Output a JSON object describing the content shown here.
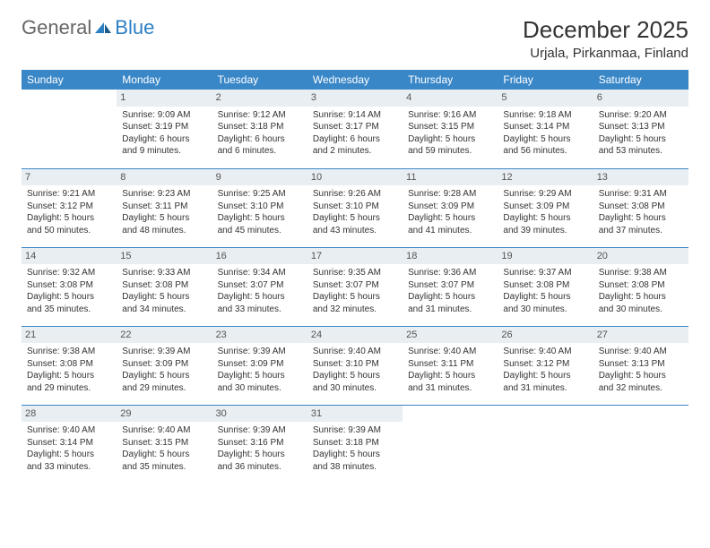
{
  "logo": {
    "text1": "General",
    "text2": "Blue"
  },
  "title": "December 2025",
  "location": "Urjala, Pirkanmaa, Finland",
  "colors": {
    "header_bg": "#3a87c8",
    "header_text": "#ffffff",
    "daynum_bg": "#e8eef2",
    "row_border": "#3a87c8",
    "logo_gray": "#666666",
    "logo_blue": "#2b7fc3"
  },
  "weekdays": [
    "Sunday",
    "Monday",
    "Tuesday",
    "Wednesday",
    "Thursday",
    "Friday",
    "Saturday"
  ],
  "weeks": [
    [
      null,
      {
        "d": "1",
        "sr": "Sunrise: 9:09 AM",
        "ss": "Sunset: 3:19 PM",
        "dl1": "Daylight: 6 hours",
        "dl2": "and 9 minutes."
      },
      {
        "d": "2",
        "sr": "Sunrise: 9:12 AM",
        "ss": "Sunset: 3:18 PM",
        "dl1": "Daylight: 6 hours",
        "dl2": "and 6 minutes."
      },
      {
        "d": "3",
        "sr": "Sunrise: 9:14 AM",
        "ss": "Sunset: 3:17 PM",
        "dl1": "Daylight: 6 hours",
        "dl2": "and 2 minutes."
      },
      {
        "d": "4",
        "sr": "Sunrise: 9:16 AM",
        "ss": "Sunset: 3:15 PM",
        "dl1": "Daylight: 5 hours",
        "dl2": "and 59 minutes."
      },
      {
        "d": "5",
        "sr": "Sunrise: 9:18 AM",
        "ss": "Sunset: 3:14 PM",
        "dl1": "Daylight: 5 hours",
        "dl2": "and 56 minutes."
      },
      {
        "d": "6",
        "sr": "Sunrise: 9:20 AM",
        "ss": "Sunset: 3:13 PM",
        "dl1": "Daylight: 5 hours",
        "dl2": "and 53 minutes."
      }
    ],
    [
      {
        "d": "7",
        "sr": "Sunrise: 9:21 AM",
        "ss": "Sunset: 3:12 PM",
        "dl1": "Daylight: 5 hours",
        "dl2": "and 50 minutes."
      },
      {
        "d": "8",
        "sr": "Sunrise: 9:23 AM",
        "ss": "Sunset: 3:11 PM",
        "dl1": "Daylight: 5 hours",
        "dl2": "and 48 minutes."
      },
      {
        "d": "9",
        "sr": "Sunrise: 9:25 AM",
        "ss": "Sunset: 3:10 PM",
        "dl1": "Daylight: 5 hours",
        "dl2": "and 45 minutes."
      },
      {
        "d": "10",
        "sr": "Sunrise: 9:26 AM",
        "ss": "Sunset: 3:10 PM",
        "dl1": "Daylight: 5 hours",
        "dl2": "and 43 minutes."
      },
      {
        "d": "11",
        "sr": "Sunrise: 9:28 AM",
        "ss": "Sunset: 3:09 PM",
        "dl1": "Daylight: 5 hours",
        "dl2": "and 41 minutes."
      },
      {
        "d": "12",
        "sr": "Sunrise: 9:29 AM",
        "ss": "Sunset: 3:09 PM",
        "dl1": "Daylight: 5 hours",
        "dl2": "and 39 minutes."
      },
      {
        "d": "13",
        "sr": "Sunrise: 9:31 AM",
        "ss": "Sunset: 3:08 PM",
        "dl1": "Daylight: 5 hours",
        "dl2": "and 37 minutes."
      }
    ],
    [
      {
        "d": "14",
        "sr": "Sunrise: 9:32 AM",
        "ss": "Sunset: 3:08 PM",
        "dl1": "Daylight: 5 hours",
        "dl2": "and 35 minutes."
      },
      {
        "d": "15",
        "sr": "Sunrise: 9:33 AM",
        "ss": "Sunset: 3:08 PM",
        "dl1": "Daylight: 5 hours",
        "dl2": "and 34 minutes."
      },
      {
        "d": "16",
        "sr": "Sunrise: 9:34 AM",
        "ss": "Sunset: 3:07 PM",
        "dl1": "Daylight: 5 hours",
        "dl2": "and 33 minutes."
      },
      {
        "d": "17",
        "sr": "Sunrise: 9:35 AM",
        "ss": "Sunset: 3:07 PM",
        "dl1": "Daylight: 5 hours",
        "dl2": "and 32 minutes."
      },
      {
        "d": "18",
        "sr": "Sunrise: 9:36 AM",
        "ss": "Sunset: 3:07 PM",
        "dl1": "Daylight: 5 hours",
        "dl2": "and 31 minutes."
      },
      {
        "d": "19",
        "sr": "Sunrise: 9:37 AM",
        "ss": "Sunset: 3:08 PM",
        "dl1": "Daylight: 5 hours",
        "dl2": "and 30 minutes."
      },
      {
        "d": "20",
        "sr": "Sunrise: 9:38 AM",
        "ss": "Sunset: 3:08 PM",
        "dl1": "Daylight: 5 hours",
        "dl2": "and 30 minutes."
      }
    ],
    [
      {
        "d": "21",
        "sr": "Sunrise: 9:38 AM",
        "ss": "Sunset: 3:08 PM",
        "dl1": "Daylight: 5 hours",
        "dl2": "and 29 minutes."
      },
      {
        "d": "22",
        "sr": "Sunrise: 9:39 AM",
        "ss": "Sunset: 3:09 PM",
        "dl1": "Daylight: 5 hours",
        "dl2": "and 29 minutes."
      },
      {
        "d": "23",
        "sr": "Sunrise: 9:39 AM",
        "ss": "Sunset: 3:09 PM",
        "dl1": "Daylight: 5 hours",
        "dl2": "and 30 minutes."
      },
      {
        "d": "24",
        "sr": "Sunrise: 9:40 AM",
        "ss": "Sunset: 3:10 PM",
        "dl1": "Daylight: 5 hours",
        "dl2": "and 30 minutes."
      },
      {
        "d": "25",
        "sr": "Sunrise: 9:40 AM",
        "ss": "Sunset: 3:11 PM",
        "dl1": "Daylight: 5 hours",
        "dl2": "and 31 minutes."
      },
      {
        "d": "26",
        "sr": "Sunrise: 9:40 AM",
        "ss": "Sunset: 3:12 PM",
        "dl1": "Daylight: 5 hours",
        "dl2": "and 31 minutes."
      },
      {
        "d": "27",
        "sr": "Sunrise: 9:40 AM",
        "ss": "Sunset: 3:13 PM",
        "dl1": "Daylight: 5 hours",
        "dl2": "and 32 minutes."
      }
    ],
    [
      {
        "d": "28",
        "sr": "Sunrise: 9:40 AM",
        "ss": "Sunset: 3:14 PM",
        "dl1": "Daylight: 5 hours",
        "dl2": "and 33 minutes."
      },
      {
        "d": "29",
        "sr": "Sunrise: 9:40 AM",
        "ss": "Sunset: 3:15 PM",
        "dl1": "Daylight: 5 hours",
        "dl2": "and 35 minutes."
      },
      {
        "d": "30",
        "sr": "Sunrise: 9:39 AM",
        "ss": "Sunset: 3:16 PM",
        "dl1": "Daylight: 5 hours",
        "dl2": "and 36 minutes."
      },
      {
        "d": "31",
        "sr": "Sunrise: 9:39 AM",
        "ss": "Sunset: 3:18 PM",
        "dl1": "Daylight: 5 hours",
        "dl2": "and 38 minutes."
      },
      null,
      null,
      null
    ]
  ]
}
